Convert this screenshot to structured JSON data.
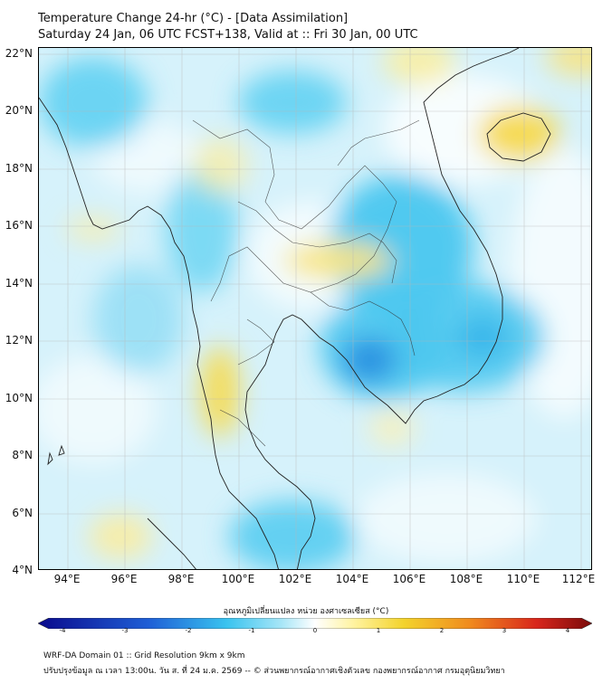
{
  "header": {
    "title_line1": "Temperature Change 24-hr (°C) - [Data Assimilation]",
    "title_line2": "Saturday 24 Jan, 06 UTC FCST+138, Valid at :: Fri 30 Jan, 00 UTC"
  },
  "axes": {
    "lat_labels": [
      "22°N",
      "20°N",
      "18°N",
      "16°N",
      "14°N",
      "12°N",
      "10°N",
      "8°N",
      "6°N",
      "4°N"
    ],
    "lon_labels": [
      "94°E",
      "96°E",
      "98°E",
      "100°E",
      "102°E",
      "104°E",
      "106°E",
      "108°E",
      "110°E",
      "112°E"
    ]
  },
  "colorbar": {
    "title": "อุณหภูมิเปลี่ยนแปลง หน่วย องศาเซลเซียส (°C)",
    "ticks": [
      "-4",
      "-3",
      "-2",
      "-1",
      "0",
      "1",
      "2",
      "3",
      "4"
    ],
    "colors": {
      "dark_blue": "#0a0a8c",
      "blue": "#1f5fd6",
      "cyan": "#39c3ef",
      "light_cyan": "#a8e6f7",
      "white": "#ffffff",
      "light_yellow": "#fff3a0",
      "yellow": "#f3d32c",
      "orange": "#f08a1e",
      "red": "#d8261c",
      "dark_red": "#7a0b0b"
    }
  },
  "footer": {
    "line1": "WRF-DA Domain 01 :: Grid Resolution 9km x 9km",
    "line2": "ปรับปรุงข้อมูล ณ เวลา 13:00น. วัน ส. ที่ 24 ม.ค. 2569 -- © ส่วนพยากรณ์อากาศเชิงตัวเลข กองพยากรณ์อากาศ กรมอุตุนิยมวิทยา"
  }
}
